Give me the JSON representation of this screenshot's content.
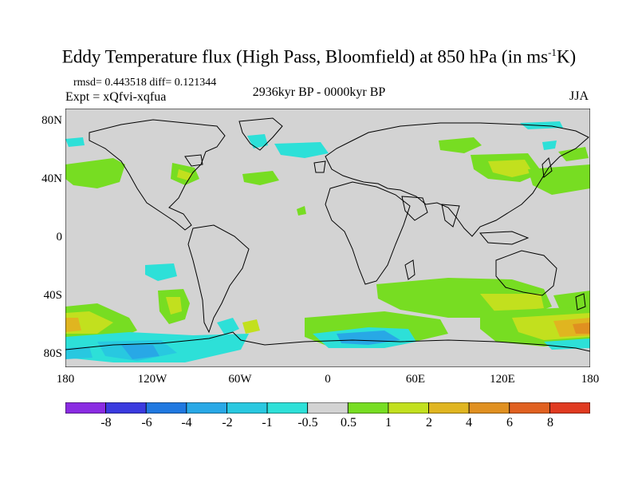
{
  "title": {
    "main": "Eddy Temperature flux (High Pass, Bloomfield) at 850 hPa (in ms",
    "sup": "-1",
    "tail": "K)"
  },
  "stats": "rmsd= 0.443518 diff= 0.121344",
  "expt": "Expt = xQfvi-xqfua",
  "period": "2936kyr BP - 0000kyr BP",
  "season": "JJA",
  "axes": {
    "lat_ticks": [
      "80N",
      "40N",
      "0",
      "40S",
      "80S"
    ],
    "lon_ticks": [
      "180",
      "120W",
      "60W",
      "0",
      "60E",
      "120E",
      "180"
    ]
  },
  "colorbar": {
    "colors": [
      "#8a2be2",
      "#3a3adf",
      "#1f78e0",
      "#28a8e6",
      "#28c8e0",
      "#2de0d8",
      "#d3d3d3",
      "#77dd22",
      "#c2e01e",
      "#e0b520",
      "#e09020",
      "#e06020",
      "#e03a20"
    ],
    "labels": [
      "-8",
      "-6",
      "-4",
      "-2",
      "-1",
      "-0.5",
      "0.5",
      "1",
      "2",
      "4",
      "6",
      "8"
    ]
  },
  "map_colors": {
    "ocean": "#d3d3d3",
    "coast": "#000000"
  }
}
